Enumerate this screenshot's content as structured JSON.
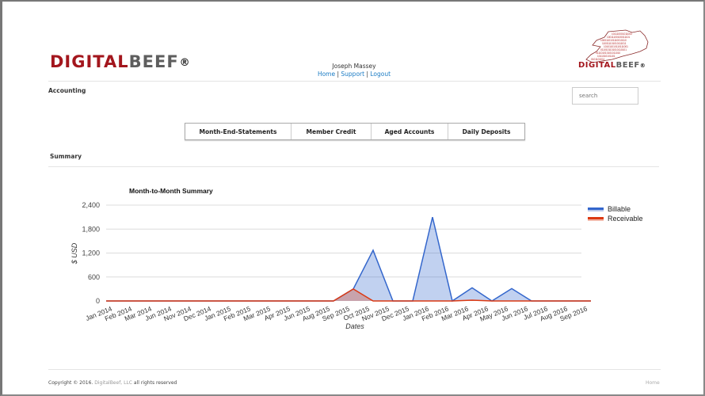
{
  "header": {
    "logo": {
      "part1": "DIGITAL",
      "part2": "BEEF",
      "reg": "®"
    },
    "user_name": "Joseph Massey",
    "links": [
      {
        "label": "Home"
      },
      {
        "label": "Support"
      },
      {
        "label": "Logout"
      }
    ],
    "link_separator": "|",
    "right_logo": {
      "part1": "DIGITAL",
      "part2": "BEEF",
      "reg": "®"
    }
  },
  "page": {
    "section_label": "Accounting",
    "search_placeholder": "search",
    "tabs": [
      {
        "label": "Month-End-Statements"
      },
      {
        "label": "Member Credit"
      },
      {
        "label": "Aged Accounts"
      },
      {
        "label": "Daily Deposits"
      }
    ],
    "summary_label": "Summary"
  },
  "chart_data": {
    "type": "area",
    "title": "Month-to-Month Summary",
    "xlabel": "Dates",
    "ylabel": "$ USD",
    "ylim": [
      0,
      2400
    ],
    "yticks": [
      "0",
      "600",
      "1,200",
      "1,800",
      "2,400"
    ],
    "grid": true,
    "legend_position": "right",
    "categories": [
      "Jan 2014",
      "Feb 2014",
      "Mar 2014",
      "Jun 2014",
      "Nov 2014",
      "Dec 2014",
      "Jan 2015",
      "Feb 2015",
      "Mar 2015",
      "Apr 2015",
      "Jun 2015",
      "Aug 2015",
      "Sep 2015",
      "Oct 2015",
      "Nov 2015",
      "Dec 2015",
      "Jan 2016",
      "Feb 2016",
      "Mar 2016",
      "Apr 2016",
      "May 2016",
      "Jun 2016",
      "Jul 2016",
      "Aug 2016",
      "Sep 2016"
    ],
    "series": [
      {
        "name": "Billable",
        "color": "#3366cc",
        "values": [
          0,
          0,
          0,
          0,
          0,
          0,
          0,
          0,
          0,
          0,
          0,
          0,
          300,
          1270,
          0,
          0,
          2100,
          0,
          330,
          0,
          310,
          0,
          0,
          0,
          0
        ]
      },
      {
        "name": "Receivable",
        "color": "#dc3912",
        "values": [
          0,
          0,
          0,
          0,
          0,
          0,
          0,
          0,
          0,
          0,
          0,
          0,
          300,
          0,
          0,
          0,
          0,
          0,
          20,
          0,
          0,
          0,
          0,
          0,
          0
        ]
      }
    ]
  },
  "footer": {
    "copyright_prefix": "Copyright © 2016.",
    "brand": "DigitalBeef, LLC",
    "copyright_suffix": "all rights reserved",
    "home_link": "Home"
  }
}
